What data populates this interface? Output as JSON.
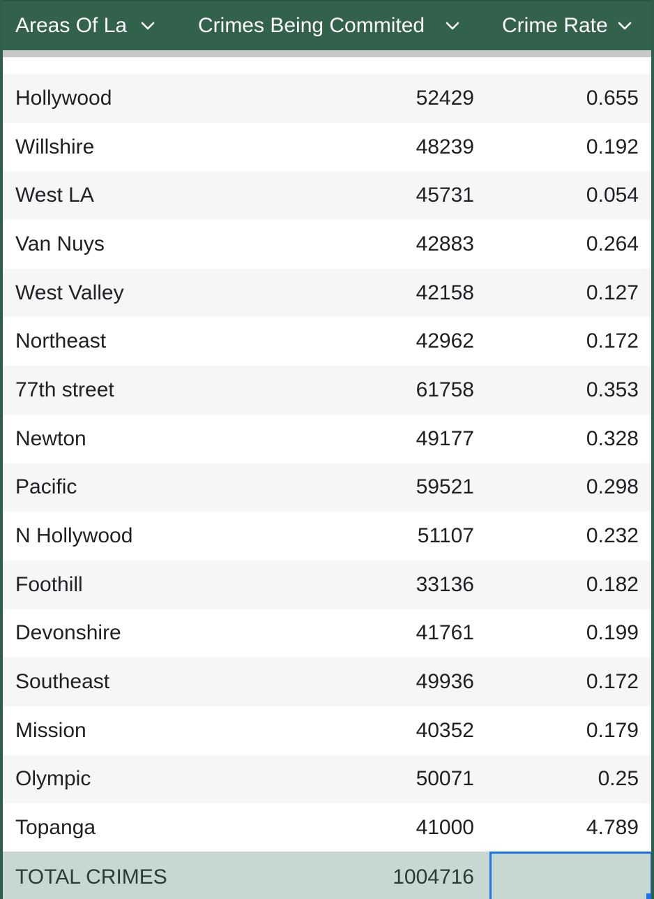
{
  "header": {
    "area_label": "Areas Of La",
    "crimes_label": "Crimes Being Commited",
    "rate_label": "Crime Rate"
  },
  "rows": [
    {
      "area": "Hollywood",
      "crimes": "52429",
      "rate": "0.655"
    },
    {
      "area": "Willshire",
      "crimes": "48239",
      "rate": "0.192"
    },
    {
      "area": "West LA",
      "crimes": "45731",
      "rate": "0.054"
    },
    {
      "area": "Van Nuys",
      "crimes": "42883",
      "rate": "0.264"
    },
    {
      "area": "West Valley",
      "crimes": "42158",
      "rate": "0.127"
    },
    {
      "area": "Northeast",
      "crimes": "42962",
      "rate": "0.172"
    },
    {
      "area": "77th street",
      "crimes": "61758",
      "rate": "0.353"
    },
    {
      "area": "Newton",
      "crimes": "49177",
      "rate": "0.328"
    },
    {
      "area": "Pacific",
      "crimes": "59521",
      "rate": "0.298"
    },
    {
      "area": "N Hollywood",
      "crimes": "51107",
      "rate": "0.232"
    },
    {
      "area": "Foothill",
      "crimes": "33136",
      "rate": "0.182"
    },
    {
      "area": "Devonshire",
      "crimes": "41761",
      "rate": "0.199"
    },
    {
      "area": "Southeast",
      "crimes": "49936",
      "rate": "0.172"
    },
    {
      "area": "Mission",
      "crimes": "40352",
      "rate": "0.179"
    },
    {
      "area": "Olympic",
      "crimes": "50071",
      "rate": "0.25"
    },
    {
      "area": "Topanga",
      "crimes": "41000",
      "rate": "4.789"
    }
  ],
  "total": {
    "label": "TOTAL CRIMES",
    "crimes": "1004716",
    "rate": ""
  },
  "colors": {
    "header_bg": "#32614c",
    "total_bg": "#c6d8d0",
    "selection": "#1a73e8"
  },
  "icons": {
    "sort": "chevron-down-icon"
  }
}
